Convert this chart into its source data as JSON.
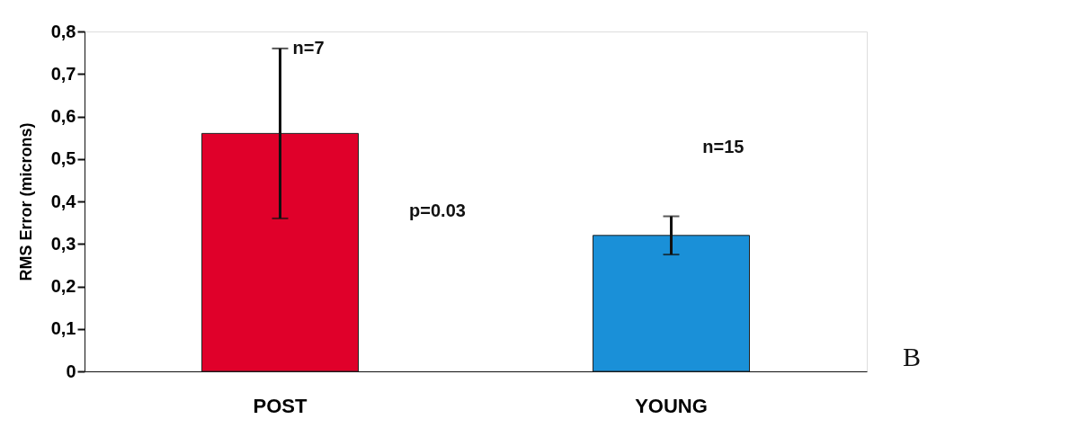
{
  "chart_data": {
    "type": "bar",
    "ylabel": "RMS Error (microns)",
    "categories": [
      "POST",
      "YOUNG"
    ],
    "values": [
      0.56,
      0.32
    ],
    "colors": [
      "#e0002a",
      "#1a90d8"
    ],
    "errors": [
      0.2,
      0.045
    ],
    "ylim": [
      0,
      0.8
    ],
    "yticks": [
      {
        "value": 0,
        "label": "0"
      },
      {
        "value": 0.1,
        "label": "0,1"
      },
      {
        "value": 0.2,
        "label": "0,2"
      },
      {
        "value": 0.3,
        "label": "0,3"
      },
      {
        "value": 0.4,
        "label": "0,4"
      },
      {
        "value": 0.5,
        "label": "0,5"
      },
      {
        "value": 0.6,
        "label": "0,6"
      },
      {
        "value": 0.7,
        "label": "0,7"
      },
      {
        "value": 0.8,
        "label": "0,8"
      }
    ],
    "grid": false,
    "annotations": [
      {
        "text": "n=7",
        "x": "POST",
        "y": 0.76
      },
      "n=15",
      "p=0.03",
      "B"
    ]
  }
}
